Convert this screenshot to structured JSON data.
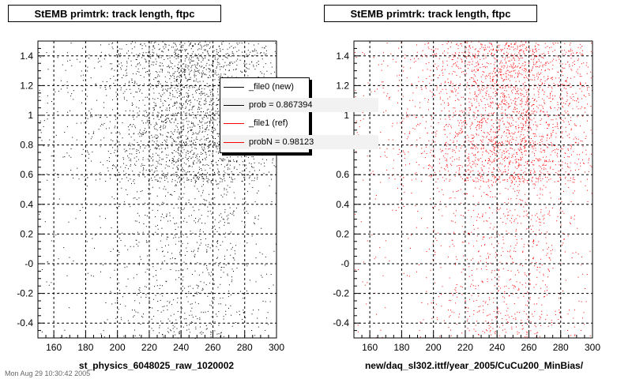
{
  "panels": [
    {
      "title": "StEMB primtrk: track length, ftpc",
      "xlabel": "st_physics_6048025_raw_1020002",
      "color": "#000000"
    },
    {
      "title": "StEMB primtrk: track length, ftpc",
      "xlabel": "new/daq_sl302.ittf/year_2005/CuCu200_MinBias/",
      "color": "#ff0000"
    }
  ],
  "legend": {
    "entries": [
      {
        "label": "_file0 (new)",
        "color": "#000000"
      },
      {
        "label": "prob = 0.867394",
        "color": "#000000"
      },
      {
        "label": "_file1 (ref)",
        "color": "#ff0000"
      },
      {
        "label": "probN = 0.98123",
        "color": "#ff0000"
      }
    ]
  },
  "footnote": "Mon Aug 29 10:30:42 2005",
  "chart_data": [
    {
      "type": "scatter",
      "title": "StEMB primtrk: track length, ftpc",
      "xlabel": "st_physics_6048025_raw_1020002",
      "ylabel": "",
      "xlim": [
        150,
        300
      ],
      "ylim": [
        -0.5,
        1.5
      ],
      "xticks": [
        160,
        180,
        200,
        220,
        240,
        260,
        280,
        300
      ],
      "yticks": [
        -0.4,
        -0.2,
        0,
        0.2,
        0.4,
        0.6,
        0.8,
        1,
        1.2,
        1.4
      ],
      "ytick_labels": [
        "-0.4",
        "-0.2",
        "-0",
        "0.2",
        "0.4",
        "0.6",
        "0.8",
        "1",
        "1.2",
        "1.4"
      ],
      "grid": true,
      "series": [
        {
          "name": "_file0 (new)",
          "color": "#000000",
          "density": {
            "x_peaks": [
              225,
              248,
              262
            ],
            "dense_y_range": [
              0.55,
              1.5
            ],
            "sparse_y_range": [
              -0.5,
              0.55
            ]
          }
        }
      ]
    },
    {
      "type": "scatter",
      "title": "StEMB primtrk: track length, ftpc",
      "xlabel": "new/daq_sl302.ittf/year_2005/CuCu200_MinBias/",
      "ylabel": "",
      "xlim": [
        150,
        300
      ],
      "ylim": [
        -0.5,
        1.5
      ],
      "xticks": [
        160,
        180,
        200,
        220,
        240,
        260,
        280,
        300
      ],
      "yticks": [
        -0.4,
        -0.2,
        0,
        0.2,
        0.4,
        0.6,
        0.8,
        1,
        1.2,
        1.4
      ],
      "ytick_labels": [
        "-0.4",
        "-0.2",
        "-0",
        "0.2",
        "0.4",
        "0.6",
        "0.8",
        "1",
        "1.2",
        "1.4"
      ],
      "grid": true,
      "series": [
        {
          "name": "_file1 (ref)",
          "color": "#ff0000",
          "density": {
            "x_peaks": [
              225,
              248,
              262
            ],
            "dense_y_range": [
              0.55,
              1.5
            ],
            "sparse_y_range": [
              -0.5,
              0.55
            ]
          }
        }
      ]
    }
  ]
}
